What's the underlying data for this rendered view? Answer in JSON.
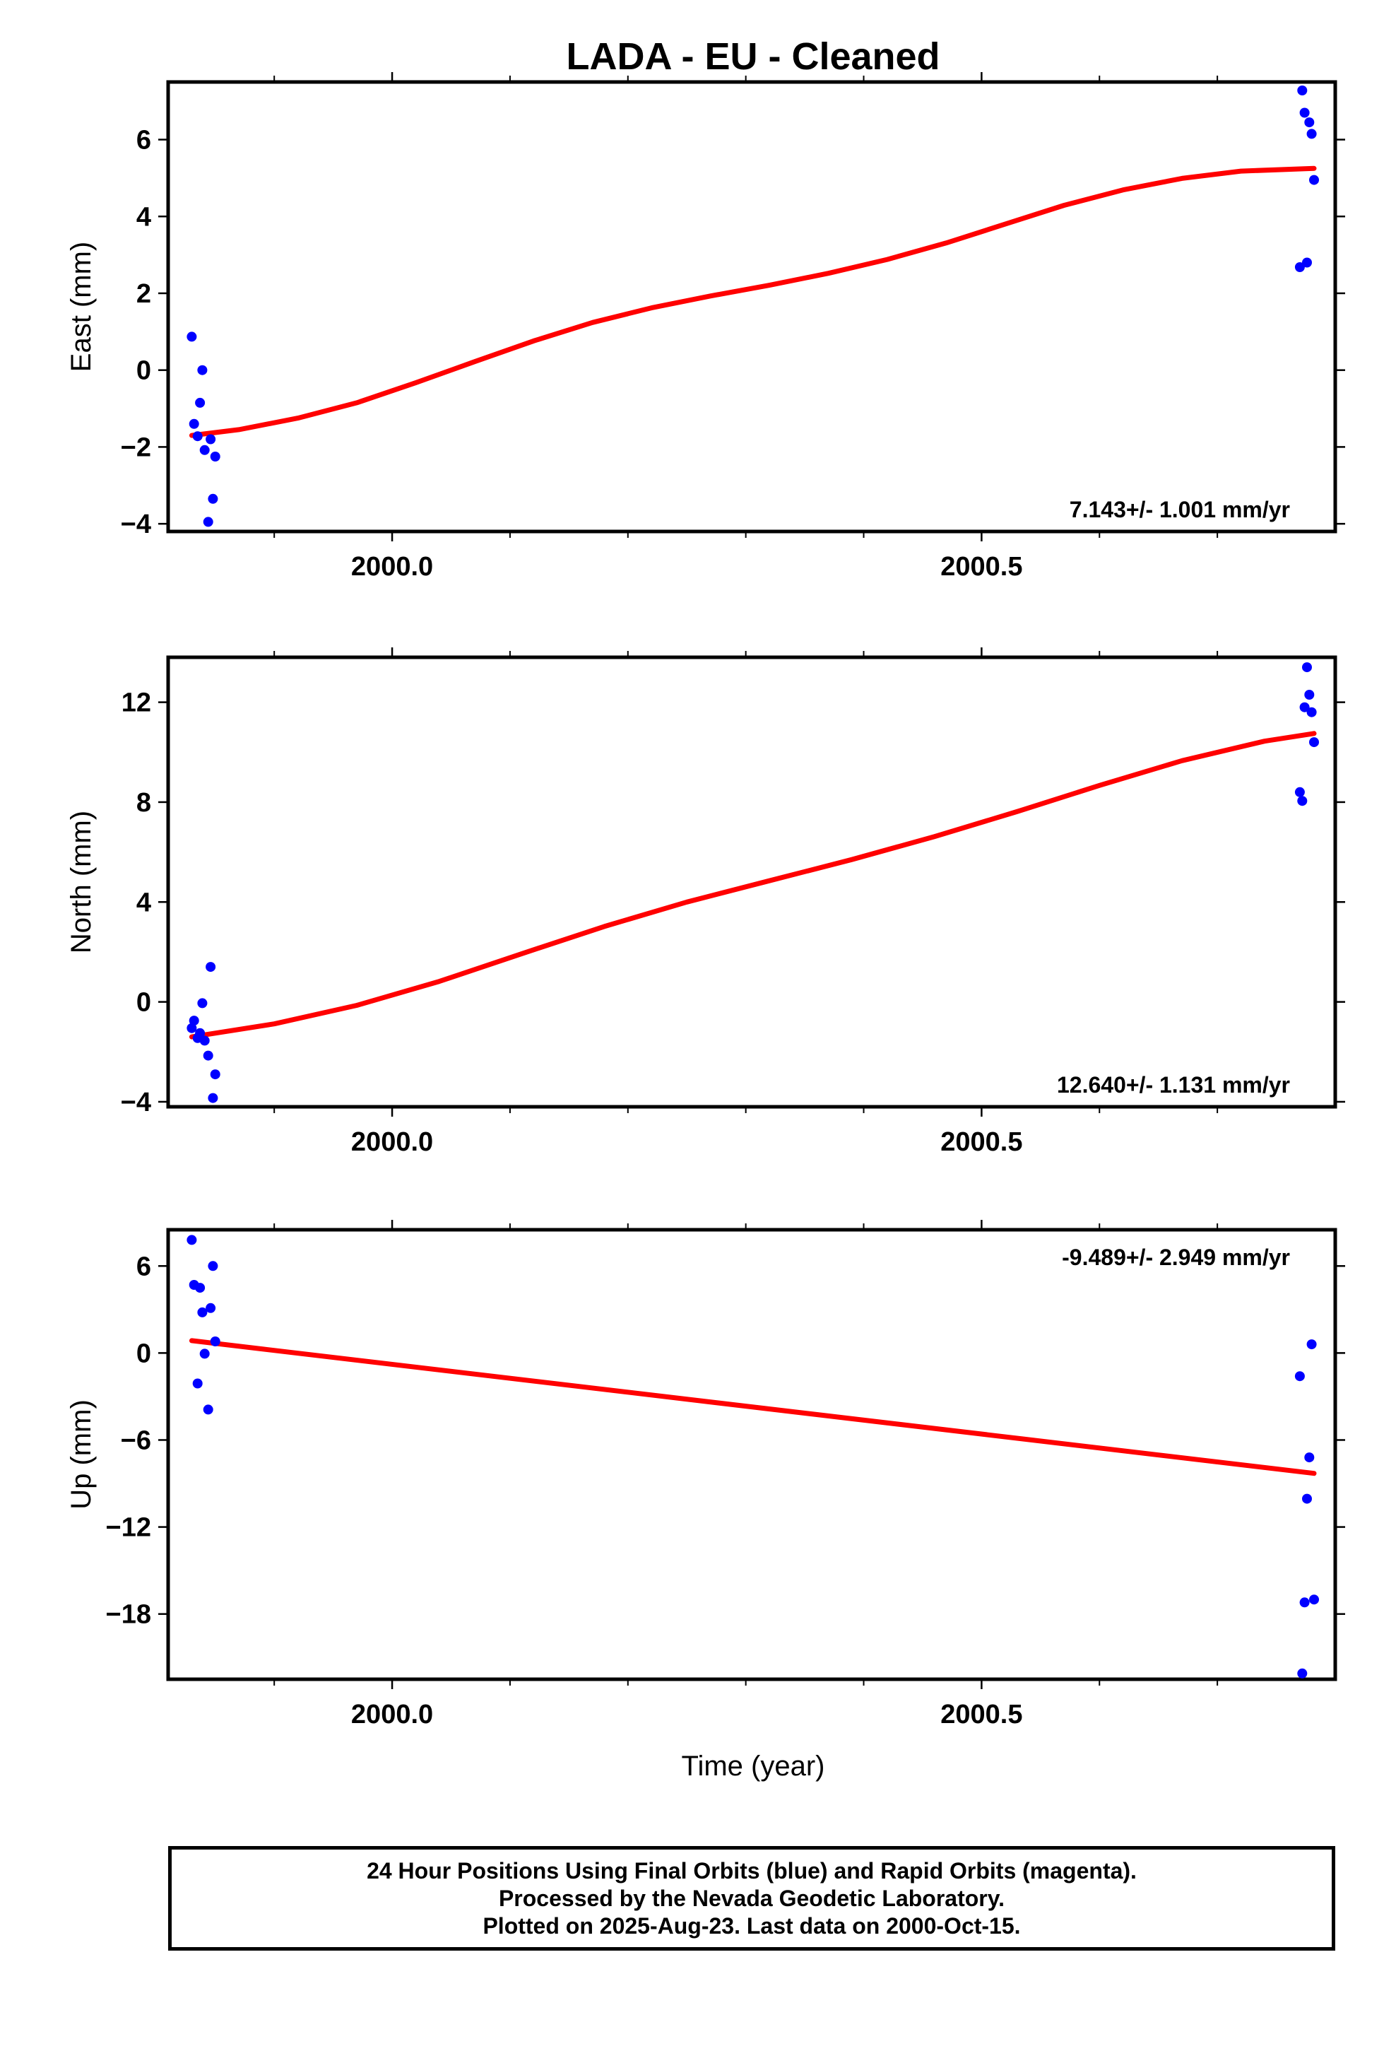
{
  "title": "LADA  - EU - Cleaned",
  "xlabel": "Time (year)",
  "footer": {
    "line1": "24 Hour Positions Using Final Orbits (blue) and Rapid Orbits (magenta).",
    "line2": "Processed by the Nevada Geodetic Laboratory.",
    "line3": "Plotted on 2025-Aug-23. Last data on 2000-Oct-15."
  },
  "colors": {
    "points": "#0000ff",
    "trend": "#ff0000",
    "frame": "#000000"
  },
  "chart_data": [
    {
      "type": "scatter",
      "ylabel": "East (mm)",
      "rate_label": "7.143+/- 1.001 mm/yr",
      "rate_position": "bottom-right",
      "xlim": [
        1999.81,
        2000.8
      ],
      "ylim": [
        -4.2,
        7.5
      ],
      "xticks": [
        2000.0,
        2000.5
      ],
      "xtick_labels": [
        "2000.0",
        "2000.5"
      ],
      "yticks": [
        -4,
        -2,
        0,
        2,
        4,
        6
      ],
      "ytick_labels": [
        "−4",
        "−2",
        "0",
        "2",
        "4",
        "6"
      ],
      "points": [
        [
          1999.83,
          0.87
        ],
        [
          1999.832,
          -1.4
        ],
        [
          1999.835,
          -1.72
        ],
        [
          1999.837,
          -0.85
        ],
        [
          1999.839,
          0.0
        ],
        [
          1999.841,
          -2.08
        ],
        [
          1999.844,
          -3.95
        ],
        [
          1999.846,
          -1.8
        ],
        [
          1999.848,
          -3.35
        ],
        [
          1999.85,
          -2.25
        ],
        [
          2000.77,
          2.68
        ],
        [
          2000.772,
          7.28
        ],
        [
          2000.774,
          6.7
        ],
        [
          2000.776,
          2.8
        ],
        [
          2000.778,
          6.45
        ],
        [
          2000.78,
          6.15
        ],
        [
          2000.782,
          4.95
        ]
      ],
      "trend": [
        [
          1999.83,
          -1.7
        ],
        [
          1999.87,
          -1.55
        ],
        [
          1999.92,
          -1.25
        ],
        [
          1999.97,
          -0.85
        ],
        [
          2000.02,
          -0.33
        ],
        [
          2000.07,
          0.22
        ],
        [
          2000.12,
          0.76
        ],
        [
          2000.17,
          1.24
        ],
        [
          2000.22,
          1.62
        ],
        [
          2000.27,
          1.93
        ],
        [
          2000.32,
          2.21
        ],
        [
          2000.37,
          2.52
        ],
        [
          2000.42,
          2.88
        ],
        [
          2000.47,
          3.31
        ],
        [
          2000.52,
          3.8
        ],
        [
          2000.57,
          4.29
        ],
        [
          2000.62,
          4.69
        ],
        [
          2000.67,
          4.99
        ],
        [
          2000.72,
          5.18
        ],
        [
          2000.782,
          5.25
        ]
      ]
    },
    {
      "type": "scatter",
      "ylabel": "North (mm)",
      "rate_label": "12.640+/- 1.131 mm/yr",
      "rate_position": "bottom-right",
      "xlim": [
        1999.81,
        2000.8
      ],
      "ylim": [
        -4.2,
        13.8
      ],
      "xticks": [
        2000.0,
        2000.5
      ],
      "xtick_labels": [
        "2000.0",
        "2000.5"
      ],
      "yticks": [
        -4,
        0,
        4,
        8,
        12
      ],
      "ytick_labels": [
        "−4",
        "0",
        "4",
        "8",
        "12"
      ],
      "points": [
        [
          1999.83,
          -1.05
        ],
        [
          1999.832,
          -0.75
        ],
        [
          1999.835,
          -1.45
        ],
        [
          1999.837,
          -1.25
        ],
        [
          1999.839,
          -0.05
        ],
        [
          1999.841,
          -1.55
        ],
        [
          1999.844,
          -2.15
        ],
        [
          1999.846,
          1.4
        ],
        [
          1999.848,
          -3.85
        ],
        [
          1999.85,
          -2.9
        ],
        [
          2000.77,
          8.4
        ],
        [
          2000.772,
          8.05
        ],
        [
          2000.774,
          11.8
        ],
        [
          2000.776,
          13.4
        ],
        [
          2000.778,
          12.3
        ],
        [
          2000.78,
          11.6
        ],
        [
          2000.782,
          10.4
        ]
      ],
      "trend": [
        [
          1999.83,
          -1.4
        ],
        [
          1999.9,
          -0.88
        ],
        [
          1999.97,
          -0.14
        ],
        [
          2000.04,
          0.82
        ],
        [
          2000.11,
          1.93
        ],
        [
          2000.18,
          3.02
        ],
        [
          2000.25,
          4.0
        ],
        [
          2000.32,
          4.85
        ],
        [
          2000.39,
          5.7
        ],
        [
          2000.46,
          6.62
        ],
        [
          2000.53,
          7.62
        ],
        [
          2000.6,
          8.67
        ],
        [
          2000.67,
          9.66
        ],
        [
          2000.74,
          10.44
        ],
        [
          2000.782,
          10.75
        ]
      ]
    },
    {
      "type": "scatter",
      "ylabel": "Up (mm)",
      "rate_label": "-9.489+/- 2.949 mm/yr",
      "rate_position": "top-right",
      "xlim": [
        1999.81,
        2000.8
      ],
      "ylim": [
        -22.5,
        8.5
      ],
      "xticks": [
        2000.0,
        2000.5
      ],
      "xtick_labels": [
        "2000.0",
        "2000.5"
      ],
      "yticks": [
        -18,
        -12,
        -6,
        0,
        6
      ],
      "ytick_labels": [
        "−18",
        "−12",
        "−6",
        "0",
        "6"
      ],
      "points": [
        [
          1999.83,
          7.8
        ],
        [
          1999.832,
          4.7
        ],
        [
          1999.835,
          -2.1
        ],
        [
          1999.837,
          4.5
        ],
        [
          1999.839,
          2.8
        ],
        [
          1999.841,
          -0.05
        ],
        [
          1999.844,
          -3.9
        ],
        [
          1999.846,
          3.1
        ],
        [
          1999.848,
          6.0
        ],
        [
          1999.85,
          0.8
        ],
        [
          2000.77,
          -1.6
        ],
        [
          2000.772,
          -22.1
        ],
        [
          2000.774,
          -17.2
        ],
        [
          2000.776,
          -10.05
        ],
        [
          2000.778,
          -7.2
        ],
        [
          2000.78,
          0.6
        ],
        [
          2000.782,
          -17.0
        ]
      ],
      "trend": [
        [
          1999.83,
          0.85
        ],
        [
          2000.782,
          -8.3
        ]
      ]
    }
  ]
}
